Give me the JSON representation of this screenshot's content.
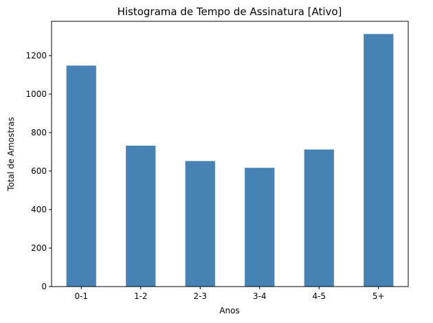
{
  "chart_data": {
    "type": "bar",
    "title": "Histograma de Tempo de Assinatura [Ativo]",
    "xlabel": "Anos",
    "ylabel": "Total de Amostras",
    "categories": [
      "0-1",
      "1-2",
      "2-3",
      "3-4",
      "4-5",
      "5+"
    ],
    "values": [
      1148,
      732,
      652,
      617,
      712,
      1312
    ],
    "ylim": [
      0,
      1378
    ],
    "yticks": [
      0,
      200,
      400,
      600,
      800,
      1000,
      1200
    ],
    "grid": false,
    "bar_color": "#4682b4"
  }
}
